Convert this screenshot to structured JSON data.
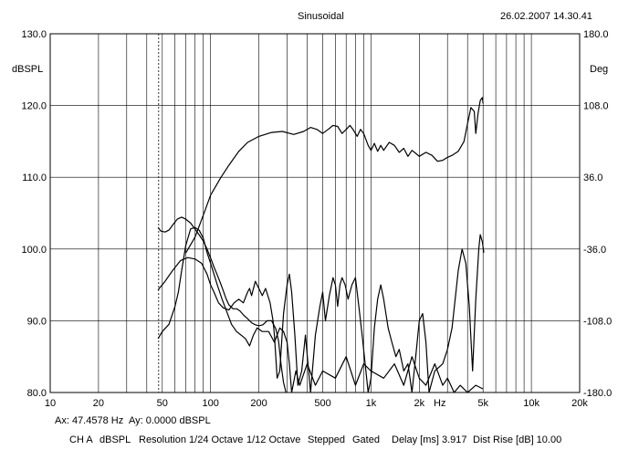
{
  "header": {
    "title": "Sinusoidal",
    "timestamp": "26.02.2007 14.30.41"
  },
  "cursor": {
    "ax": "Ax: 47.4578 Hz",
    "ay": "Ay: 0.0000 dBSPL"
  },
  "footer": {
    "channel": "CH A",
    "unit": "dBSPL",
    "resolution": "Resolution 1/24 Octave",
    "smoothing": "1/12 Octave",
    "mode": "Stepped",
    "gating": "Gated",
    "delay": "Delay [ms] 3.917",
    "dist_rise": "Dist Rise [dB] 10.00"
  },
  "chart_data": {
    "type": "line",
    "title": "Sinusoidal",
    "xscale": "log",
    "xlim": [
      10,
      20000
    ],
    "ylim": [
      80,
      130
    ],
    "y2lim": [
      -180,
      180
    ],
    "ylabel": "dBSPL",
    "y2label": "Deg",
    "xlabel": "Hz",
    "grid": true,
    "cursor_x": 47.4578,
    "x_tick_labels": [
      {
        "x": 10,
        "label": "10"
      },
      {
        "x": 20,
        "label": "20"
      },
      {
        "x": 50,
        "label": "50"
      },
      {
        "x": 100,
        "label": "100"
      },
      {
        "x": 200,
        "label": "200"
      },
      {
        "x": 500,
        "label": "500"
      },
      {
        "x": 1000,
        "label": "1k"
      },
      {
        "x": 2000,
        "label": "2k"
      },
      {
        "x": 5000,
        "label": "5k"
      },
      {
        "x": 10000,
        "label": "10k"
      },
      {
        "x": 20000,
        "label": "20k"
      }
    ],
    "y_ticks": [
      "80.0",
      "90.0",
      "100.0",
      "110.0",
      "120.0",
      "130.0"
    ],
    "y2_ticks": [
      "-180.0",
      "-108.0",
      "-36.0",
      "36.0",
      "108.0",
      "180.0"
    ],
    "series": [
      {
        "axis": "left",
        "points": [
          [
            47,
            94.3
          ],
          [
            52,
            95.5
          ],
          [
            58,
            97
          ],
          [
            65,
            98.4
          ],
          [
            72,
            98.8
          ],
          [
            80,
            98.6
          ],
          [
            88,
            98
          ],
          [
            95,
            96.5
          ],
          [
            100,
            95
          ],
          [
            105,
            94
          ],
          [
            112,
            92.5
          ],
          [
            120,
            91.8
          ],
          [
            130,
            91.5
          ],
          [
            140,
            92.5
          ],
          [
            150,
            93
          ],
          [
            160,
            92.5
          ],
          [
            170,
            94
          ],
          [
            175,
            94.5
          ],
          [
            180,
            93.5
          ],
          [
            190,
            95.5
          ],
          [
            200,
            94.5
          ],
          [
            210,
            93.5
          ],
          [
            220,
            94.5
          ],
          [
            235,
            92.5
          ],
          [
            245,
            90
          ],
          [
            250,
            88
          ],
          [
            260,
            82
          ],
          [
            270,
            83
          ],
          [
            285,
            91
          ],
          [
            300,
            95
          ],
          [
            310,
            96.5
          ],
          [
            320,
            94
          ],
          [
            335,
            88
          ],
          [
            350,
            81
          ],
          [
            370,
            83
          ],
          [
            390,
            88
          ],
          [
            420,
            80
          ],
          [
            450,
            88
          ],
          [
            480,
            92
          ],
          [
            500,
            94
          ],
          [
            520,
            90
          ],
          [
            550,
            93.5
          ],
          [
            580,
            96
          ],
          [
            600,
            95
          ],
          [
            620,
            92
          ],
          [
            640,
            95
          ],
          [
            660,
            96
          ],
          [
            690,
            95
          ],
          [
            720,
            93
          ],
          [
            760,
            95
          ],
          [
            800,
            96
          ],
          [
            840,
            92
          ],
          [
            880,
            88
          ],
          [
            920,
            84
          ],
          [
            960,
            80
          ],
          [
            1000,
            82
          ],
          [
            1050,
            89
          ],
          [
            1100,
            93
          ],
          [
            1150,
            95
          ],
          [
            1200,
            93
          ],
          [
            1280,
            89
          ],
          [
            1350,
            87
          ],
          [
            1430,
            85
          ],
          [
            1500,
            86
          ],
          [
            1600,
            83
          ],
          [
            1700,
            84
          ],
          [
            1800,
            80
          ],
          [
            1900,
            85
          ],
          [
            2000,
            90
          ],
          [
            2100,
            91
          ],
          [
            2200,
            87
          ],
          [
            2300,
            80
          ],
          [
            2500,
            83
          ],
          [
            2800,
            84
          ],
          [
            3000,
            86
          ],
          [
            3200,
            89
          ],
          [
            3500,
            97
          ],
          [
            3700,
            100
          ],
          [
            3900,
            98
          ],
          [
            4100,
            92
          ],
          [
            4300,
            83
          ],
          [
            4500,
            93
          ],
          [
            4700,
            100
          ],
          [
            4800,
            102
          ],
          [
            4950,
            101
          ],
          [
            5050,
            99.5
          ]
        ]
      },
      {
        "axis": "left",
        "points": [
          [
            47,
            87.5
          ],
          [
            50,
            88.5
          ],
          [
            55,
            89.5
          ],
          [
            60,
            92
          ],
          [
            63,
            94
          ],
          [
            66,
            97
          ],
          [
            70,
            100.5
          ],
          [
            75,
            102.8
          ],
          [
            80,
            103
          ],
          [
            85,
            102.6
          ],
          [
            90,
            101.5
          ],
          [
            95,
            99.5
          ],
          [
            100,
            98
          ],
          [
            105,
            96.5
          ],
          [
            110,
            95
          ],
          [
            118,
            93
          ],
          [
            125,
            91.5
          ],
          [
            135,
            89.5
          ],
          [
            145,
            88.5
          ],
          [
            155,
            88
          ],
          [
            165,
            87.5
          ],
          [
            175,
            86.5
          ],
          [
            185,
            88
          ],
          [
            195,
            89
          ],
          [
            210,
            88.5
          ],
          [
            230,
            88.5
          ],
          [
            250,
            87
          ],
          [
            270,
            89
          ],
          [
            285,
            88.5
          ],
          [
            300,
            87
          ],
          [
            310,
            84
          ],
          [
            320,
            80
          ],
          [
            340,
            83
          ],
          [
            360,
            81
          ],
          [
            400,
            84
          ],
          [
            450,
            81
          ],
          [
            500,
            83
          ],
          [
            600,
            82
          ],
          [
            700,
            85
          ],
          [
            800,
            81
          ],
          [
            900,
            84
          ],
          [
            1000,
            83
          ],
          [
            1200,
            82
          ],
          [
            1400,
            84
          ],
          [
            1600,
            81
          ],
          [
            1800,
            85
          ],
          [
            2000,
            82
          ],
          [
            2200,
            81
          ],
          [
            2500,
            84
          ],
          [
            2800,
            81
          ],
          [
            3000,
            82
          ],
          [
            3300,
            80
          ],
          [
            3600,
            81
          ],
          [
            4000,
            80
          ],
          [
            4500,
            81
          ],
          [
            5000,
            80.5
          ]
        ]
      },
      {
        "axis": "right",
        "points": [
          [
            47,
            -14.5
          ],
          [
            49,
            -18
          ],
          [
            52,
            -19
          ],
          [
            55,
            -17
          ],
          [
            58,
            -12
          ],
          [
            62,
            -6
          ],
          [
            66,
            -4
          ],
          [
            70,
            -6
          ],
          [
            75,
            -10
          ],
          [
            80,
            -16
          ],
          [
            85,
            -22
          ],
          [
            90,
            -28
          ],
          [
            95,
            -36
          ],
          [
            100,
            -45
          ],
          [
            105,
            -54
          ],
          [
            110,
            -62
          ],
          [
            115,
            -70
          ],
          [
            120,
            -78
          ],
          [
            125,
            -86
          ],
          [
            130,
            -92
          ],
          [
            138,
            -96
          ],
          [
            145,
            -96
          ],
          [
            152,
            -98
          ],
          [
            160,
            -102
          ],
          [
            170,
            -106
          ],
          [
            180,
            -110
          ],
          [
            190,
            -112
          ],
          [
            200,
            -113
          ],
          [
            212,
            -112
          ],
          [
            225,
            -108
          ],
          [
            240,
            -108
          ],
          [
            255,
            -116
          ],
          [
            265,
            -128
          ],
          [
            275,
            -152
          ],
          [
            285,
            -170
          ],
          [
            295,
            -180
          ]
        ]
      },
      {
        "axis": "right",
        "points": [
          [
            70,
            -40
          ],
          [
            80,
            -24
          ],
          [
            90,
            -2
          ],
          [
            100,
            18
          ],
          [
            115,
            35
          ],
          [
            130,
            48
          ],
          [
            150,
            62
          ],
          [
            170,
            71
          ],
          [
            200,
            77
          ],
          [
            240,
            81
          ],
          [
            280,
            82
          ],
          [
            330,
            79
          ],
          [
            380,
            82
          ],
          [
            420,
            86
          ],
          [
            460,
            84
          ],
          [
            500,
            80
          ],
          [
            540,
            84
          ],
          [
            580,
            88
          ],
          [
            620,
            87
          ],
          [
            660,
            80
          ],
          [
            700,
            84
          ],
          [
            740,
            88
          ],
          [
            780,
            83
          ],
          [
            820,
            77
          ],
          [
            860,
            84
          ],
          [
            900,
            80
          ],
          [
            960,
            68
          ],
          [
            1000,
            63
          ],
          [
            1050,
            70
          ],
          [
            1100,
            62
          ],
          [
            1150,
            68
          ],
          [
            1200,
            63
          ],
          [
            1300,
            71
          ],
          [
            1400,
            68
          ],
          [
            1500,
            61
          ],
          [
            1600,
            65
          ],
          [
            1700,
            57
          ],
          [
            1800,
            63
          ],
          [
            1900,
            60
          ],
          [
            2000,
            57
          ],
          [
            2200,
            61
          ],
          [
            2400,
            58
          ],
          [
            2600,
            52
          ],
          [
            2800,
            53
          ],
          [
            3000,
            56
          ],
          [
            3200,
            58
          ],
          [
            3500,
            62
          ],
          [
            3800,
            72
          ],
          [
            4000,
            90
          ],
          [
            4200,
            106
          ],
          [
            4400,
            102
          ],
          [
            4500,
            80
          ],
          [
            4650,
            100
          ],
          [
            4800,
            113
          ],
          [
            4950,
            116
          ],
          [
            5000,
            110
          ]
        ]
      }
    ]
  }
}
